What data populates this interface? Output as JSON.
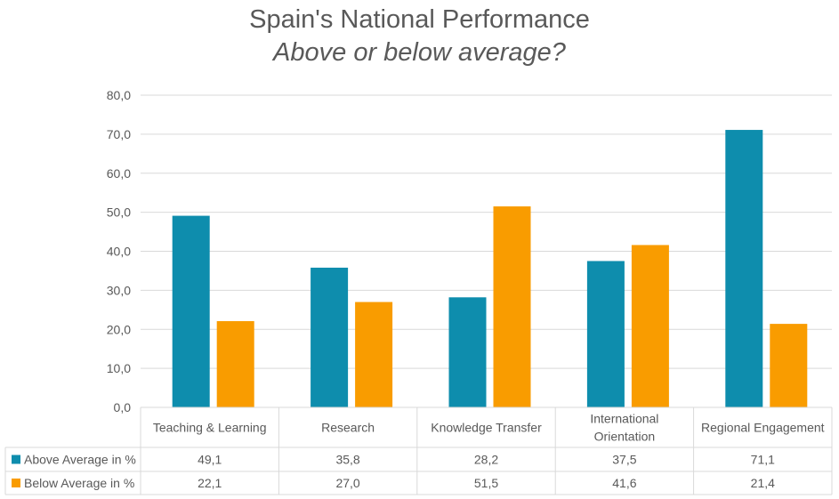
{
  "chart_data": {
    "type": "bar",
    "title": "Spain's National Performance",
    "subtitle": "Above or below average?",
    "categories": [
      "Teaching & Learning",
      "Research",
      "Knowledge Transfer",
      "International Orientation",
      "Regional Engagement"
    ],
    "category_lines": [
      [
        "Teaching & Learning"
      ],
      [
        "Research"
      ],
      [
        "Knowledge Transfer"
      ],
      [
        "International",
        "Orientation"
      ],
      [
        "Regional Engagement"
      ]
    ],
    "series": [
      {
        "name": "Above Average in %",
        "color": "#0E8DAD",
        "values": [
          49.1,
          35.8,
          28.2,
          37.5,
          71.1
        ],
        "labels": [
          "49,1",
          "35,8",
          "28,2",
          "37,5",
          "71,1"
        ]
      },
      {
        "name": "Below Average in %",
        "color": "#F99C00",
        "values": [
          22.1,
          27.0,
          51.5,
          41.6,
          21.4
        ],
        "labels": [
          "22,1",
          "27,0",
          "51,5",
          "41,6",
          "21,4"
        ]
      }
    ],
    "ylim": [
      0,
      80
    ],
    "yticks": [
      "0,0",
      "10,0",
      "20,0",
      "30,0",
      "40,0",
      "50,0",
      "60,0",
      "70,0",
      "80,0"
    ],
    "grid": true,
    "legend": "data-table",
    "xlabel": "",
    "ylabel": ""
  }
}
